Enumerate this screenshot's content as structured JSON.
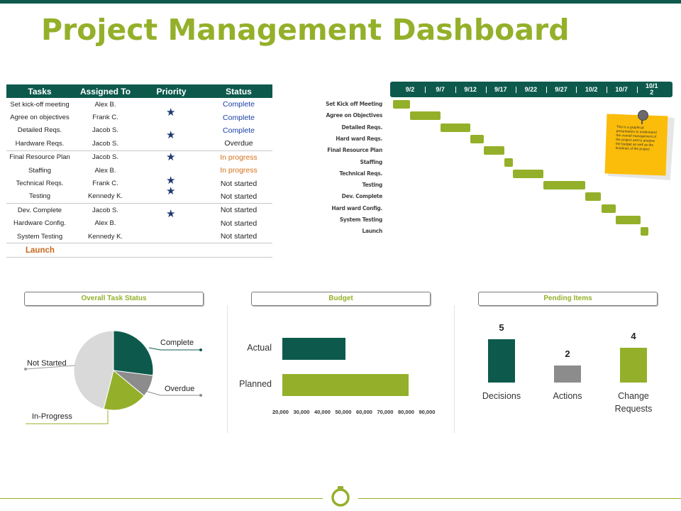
{
  "title": "Project Management Dashboard",
  "task_table": {
    "headers": [
      "Tasks",
      "Assigned To",
      "Priority",
      "Status"
    ],
    "rows": [
      {
        "task": "Set kick-off meeting",
        "assignee": "Alex B.",
        "status": "Complete"
      },
      {
        "task": "Agree on objectives",
        "assignee": "Frank C.",
        "status": "Complete"
      },
      {
        "task": "Detailed Reqs.",
        "assignee": "Jacob S.",
        "status": "Complete"
      },
      {
        "task": "Hardware Reqs.",
        "assignee": "Jacob S.",
        "status": "Overdue"
      },
      {
        "task": "Final Resource Plan",
        "assignee": "Jacob S.",
        "status": "In progress"
      },
      {
        "task": "Staffing",
        "assignee": "Alex B.",
        "status": "In progress"
      },
      {
        "task": "Technical Reqs.",
        "assignee": "Frank C.",
        "status": "Not started"
      },
      {
        "task": "Testing",
        "assignee": "Kennedy K.",
        "status": "Not started"
      },
      {
        "task": "Dev. Complete",
        "assignee": "Jacob S.",
        "status": "Not started"
      },
      {
        "task": "Hardware Config.",
        "assignee": "Alex B.",
        "status": "Not started"
      },
      {
        "task": "System Testing",
        "assignee": "Kennedy K.",
        "status": "Not started"
      }
    ],
    "launch_label": "Launch",
    "priority_star": "★",
    "priority_icon": "star-icon"
  },
  "gantt": {
    "dates": [
      "9/2",
      "9/7",
      "9/12",
      "9/17",
      "9/22",
      "9/27",
      "10/2",
      "10/7",
      "10/1\n2"
    ],
    "tasks": [
      {
        "label": "Set Kick off Meeting"
      },
      {
        "label": "Agree on Objectives"
      },
      {
        "label": "Detailed Reqs."
      },
      {
        "label": "Hard ward Reqs."
      },
      {
        "label": "Final Resource Plan"
      },
      {
        "label": "Staffing"
      },
      {
        "label": "Technical Reqs."
      },
      {
        "label": "Testing"
      },
      {
        "label": "Dev. Complete"
      },
      {
        "label": "Hard ward Config."
      },
      {
        "label": "System Testing"
      },
      {
        "label": "Launch"
      }
    ],
    "sticky_note": "This is a graphical presentation to understand the overall management of the project and to analyse the budget as well as the timelines of the project",
    "pin_icon": "pushpin-icon"
  },
  "sections": {
    "overall": "Overall Task Status",
    "budget": "Budget",
    "pending": "Pending Items"
  },
  "chart_data": [
    {
      "type": "pie",
      "title": "Overall Task Status",
      "categories": [
        "Complete",
        "Overdue",
        "In-Progress",
        "Not Started"
      ],
      "values": [
        27,
        9,
        18,
        46
      ],
      "colors": [
        "#0d5a4d",
        "#8c8c8c",
        "#94b02a",
        "#d9d9d9"
      ]
    },
    {
      "type": "bar",
      "title": "Budget",
      "orientation": "horizontal",
      "categories": [
        "Actual",
        "Planned"
      ],
      "values": [
        50000,
        80000
      ],
      "colors": [
        "#0d5a4d",
        "#94b02a"
      ],
      "xlim": [
        20000,
        90000
      ],
      "ticks": [
        "20,000",
        "30,000",
        "40,000",
        "50,000",
        "60,000",
        "70,000",
        "80,000",
        "90,000"
      ]
    },
    {
      "type": "bar",
      "title": "Pending Items",
      "categories": [
        "Decisions",
        "Actions",
        "Change\nRequests"
      ],
      "values": [
        5,
        2,
        4
      ],
      "colors": [
        "#0d5a4d",
        "#8c8c8c",
        "#94b02a"
      ]
    }
  ],
  "footer_icon": "stopwatch-icon",
  "colors": {
    "brand_dark": "#0d5a4d",
    "brand_green": "#94b02a",
    "sticky": "#fbbd0a",
    "complete_text": "#1a3fa8",
    "progress_text": "#d4701a"
  }
}
